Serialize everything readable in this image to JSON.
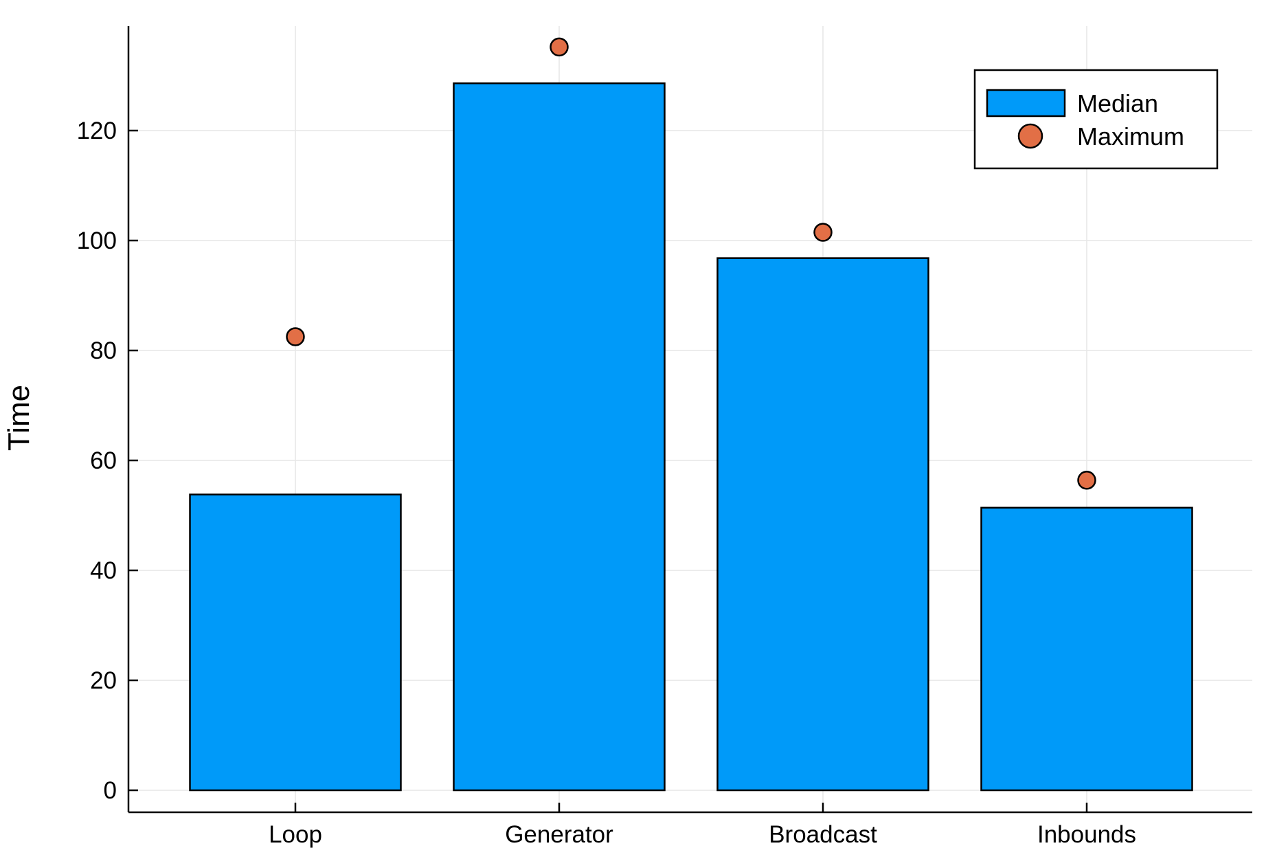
{
  "chart_data": {
    "type": "bar",
    "title": "",
    "xlabel": "",
    "ylabel": "Time",
    "categories": [
      "Loop",
      "Generator",
      "Broadcast",
      "Inbounds"
    ],
    "series": [
      {
        "name": "Median",
        "kind": "bar",
        "values": [
          53.8,
          128.6,
          96.8,
          51.4
        ],
        "color": "#009af9"
      },
      {
        "name": "Maximum",
        "kind": "scatter",
        "values": [
          82.5,
          135.2,
          101.5,
          56.4
        ],
        "color": "#e26f46"
      }
    ],
    "yticks": [
      0,
      20,
      40,
      60,
      80,
      100,
      120
    ],
    "ylim": [
      -4,
      139
    ],
    "grid": true,
    "legend_position": "top-right"
  }
}
